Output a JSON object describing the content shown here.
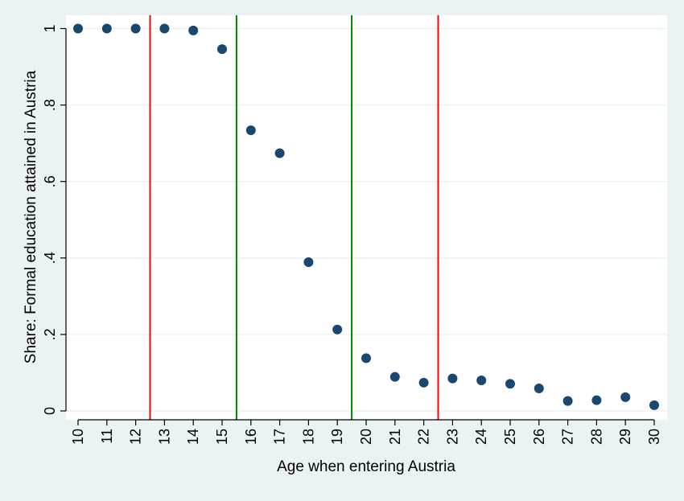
{
  "chart_data": {
    "type": "scatter",
    "title": "",
    "xlabel": "Age when entering Austria",
    "ylabel": "Share: Formal education attained in Austria",
    "xlim": [
      9.7,
      30.3
    ],
    "ylim": [
      -0.02,
      1.035
    ],
    "x_ticks": [
      10,
      11,
      12,
      13,
      14,
      15,
      16,
      17,
      18,
      19,
      20,
      21,
      22,
      23,
      24,
      25,
      26,
      27,
      28,
      29,
      30
    ],
    "x_tick_labels": [
      "10",
      "11",
      "12",
      "13",
      "14",
      "15",
      "16",
      "17",
      "18",
      "19",
      "20",
      "21",
      "22",
      "23",
      "24",
      "25",
      "26",
      "27",
      "28",
      "29",
      "30"
    ],
    "y_ticks": [
      0,
      0.2,
      0.4,
      0.6,
      0.8,
      1
    ],
    "y_tick_labels": [
      "0",
      ".2",
      ".4",
      ".6",
      ".8",
      "1"
    ],
    "grid": "horizontal",
    "legend": "none",
    "series": [
      {
        "x": [
          10,
          11,
          12,
          13,
          14,
          15,
          16,
          17,
          18,
          19,
          20,
          21,
          22,
          23,
          24,
          25,
          26,
          27,
          28,
          29,
          30
        ],
        "y": [
          1.0,
          1.0,
          1.0,
          1.0,
          0.995,
          0.946,
          0.734,
          0.674,
          0.389,
          0.213,
          0.138,
          0.089,
          0.074,
          0.085,
          0.08,
          0.071,
          0.059,
          0.026,
          0.028,
          0.036,
          0.015
        ],
        "color": "#1a476f"
      }
    ],
    "vertical_lines": [
      {
        "x": 12.5,
        "color": "#ff0000"
      },
      {
        "x": 15.5,
        "color": "#008000"
      },
      {
        "x": 19.5,
        "color": "#008000"
      },
      {
        "x": 22.5,
        "color": "#ff0000"
      }
    ],
    "colors": {
      "background": "#eaf2f3",
      "plot_background": "#ffffff",
      "grid": "#eaf2f3",
      "axis": "#000000",
      "marker": "#1a476f"
    }
  }
}
